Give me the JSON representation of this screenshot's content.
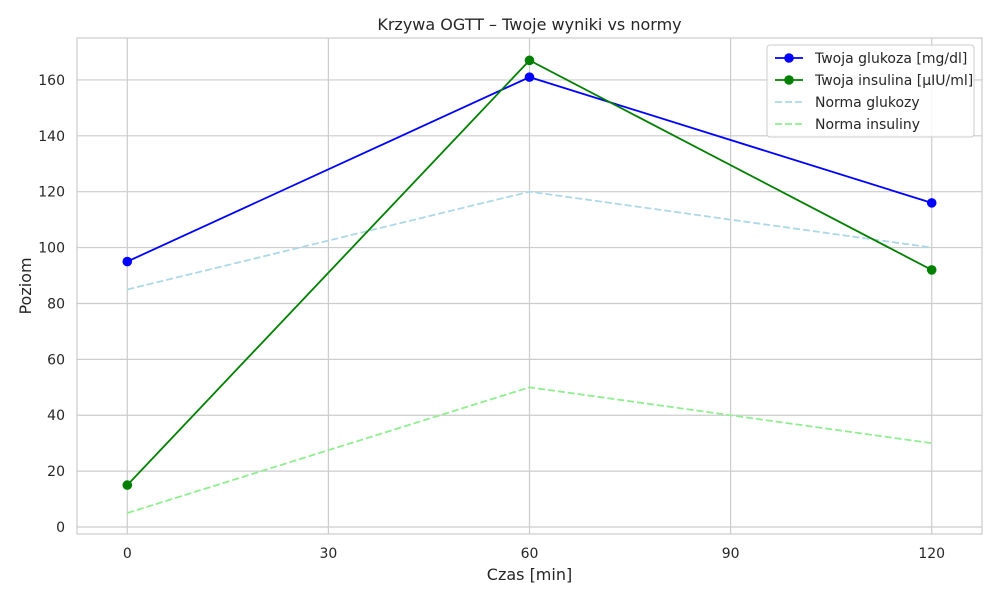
{
  "chart_data": {
    "type": "line",
    "title": "Krzywa OGTT – Twoje wyniki vs normy",
    "xlabel": "Czas [min]",
    "ylabel": "Poziom",
    "x": [
      0,
      60,
      120
    ],
    "xticks": [
      0,
      30,
      60,
      90,
      120
    ],
    "yticks": [
      0,
      20,
      40,
      60,
      80,
      100,
      120,
      140,
      160
    ],
    "xlim": [
      -7.5,
      127.5
    ],
    "ylim": [
      -2.5,
      175
    ],
    "grid": true,
    "legend_position": "top-right",
    "series": [
      {
        "name": "Twoja glukoza [mg/dl]",
        "values": [
          95,
          161,
          116
        ],
        "color": "#0000ff",
        "style": "solid",
        "marker": true
      },
      {
        "name": "Twoja insulina [µIU/ml]",
        "values": [
          15,
          167,
          92
        ],
        "color": "#008000",
        "style": "solid",
        "marker": true
      },
      {
        "name": "Norma glukozy",
        "values": [
          85,
          120,
          100
        ],
        "color": "#add8e6",
        "style": "dashed",
        "marker": false
      },
      {
        "name": "Norma insuliny",
        "values": [
          5,
          50,
          30
        ],
        "color": "#90ee90",
        "style": "dashed",
        "marker": false
      }
    ]
  }
}
